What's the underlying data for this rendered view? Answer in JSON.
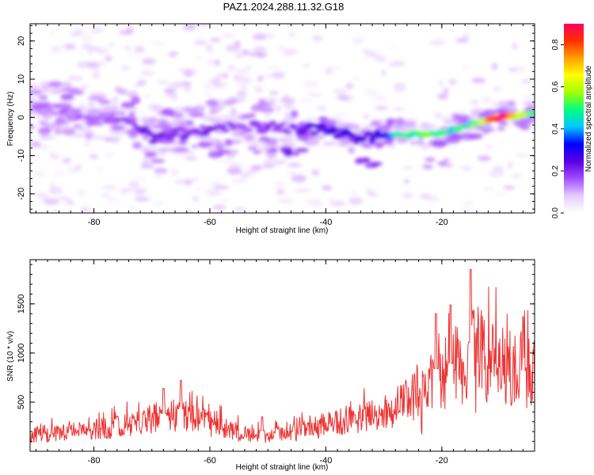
{
  "page": {
    "title": "PAZ1.2024.288.11.32.G18"
  },
  "chart_data": [
    {
      "type": "heatmap",
      "title": "PAZ1.2024.288.11.32.G18",
      "xlabel": "Height of straight line (km)",
      "ylabel": "Frequency (Hz)",
      "xlim": [
        -91,
        -4
      ],
      "ylim": [
        -25,
        24.5
      ],
      "x_ticks": [
        -80,
        -60,
        -40,
        -20
      ],
      "y_ticks": [
        -20,
        -10,
        0,
        10,
        20
      ],
      "colorbar": {
        "label": "Normalized spectral amplitude",
        "range": [
          0,
          0.9
        ],
        "ticks": [
          0.0,
          0.2,
          0.4,
          0.6,
          0.8
        ],
        "colors": [
          "#ffffff",
          "#e6ccff",
          "#a44cff",
          "#5a00e0",
          "#0000ff",
          "#00c8ff",
          "#00ff80",
          "#a0ff00",
          "#ffff00",
          "#ffa000",
          "#ff3000",
          "#ff0060"
        ]
      },
      "ridge": [
        {
          "x": -91,
          "y": 1.5,
          "amp": 0.12
        },
        {
          "x": -85,
          "y": 2,
          "amp": 0.15
        },
        {
          "x": -80,
          "y": -1,
          "amp": 0.15
        },
        {
          "x": -75,
          "y": 0.5,
          "amp": 0.18
        },
        {
          "x": -70,
          "y": -5.5,
          "amp": 0.22
        },
        {
          "x": -65,
          "y": -4,
          "amp": 0.2
        },
        {
          "x": -60,
          "y": -3,
          "amp": 0.22
        },
        {
          "x": -55,
          "y": -2,
          "amp": 0.18
        },
        {
          "x": -50,
          "y": -2.5,
          "amp": 0.2
        },
        {
          "x": -45,
          "y": -3,
          "amp": 0.22
        },
        {
          "x": -40,
          "y": -3,
          "amp": 0.26
        },
        {
          "x": -35,
          "y": -5.5,
          "amp": 0.26
        },
        {
          "x": -30,
          "y": -4.5,
          "amp": 0.32
        },
        {
          "x": -25,
          "y": -4.5,
          "amp": 0.55
        },
        {
          "x": -20,
          "y": -4,
          "amp": 0.45
        },
        {
          "x": -15,
          "y": -2,
          "amp": 0.5
        },
        {
          "x": -10,
          "y": 0,
          "amp": 0.88
        },
        {
          "x": -4,
          "y": 1,
          "amp": 0.5
        }
      ],
      "secondary_features": [
        {
          "x": -46,
          "y": -9,
          "amp": 0.25
        },
        {
          "x": -33,
          "y": -12,
          "amp": 0.2
        },
        {
          "x": -21,
          "y": -12,
          "amp": 0.15
        },
        {
          "x": -52,
          "y": 17,
          "amp": 0.12
        },
        {
          "x": -88,
          "y": 7,
          "amp": 0.1
        }
      ]
    },
    {
      "type": "line",
      "xlabel": "Height of straight line (km)",
      "ylabel": "SNR (10 * v/v)",
      "xlim": [
        -91,
        -4
      ],
      "ylim": [
        0,
        1950
      ],
      "x_ticks": [
        -80,
        -60,
        -40,
        -20
      ],
      "y_ticks": [
        500,
        1000,
        1500
      ],
      "color": "#ee3333",
      "envelope": [
        {
          "x": -91,
          "y": 180
        },
        {
          "x": -85,
          "y": 220
        },
        {
          "x": -80,
          "y": 260
        },
        {
          "x": -75,
          "y": 300
        },
        {
          "x": -70,
          "y": 400
        },
        {
          "x": -65,
          "y": 430
        },
        {
          "x": -60,
          "y": 330
        },
        {
          "x": -55,
          "y": 220
        },
        {
          "x": -50,
          "y": 180
        },
        {
          "x": -45,
          "y": 240
        },
        {
          "x": -40,
          "y": 320
        },
        {
          "x": -35,
          "y": 380
        },
        {
          "x": -30,
          "y": 450
        },
        {
          "x": -26,
          "y": 600
        },
        {
          "x": -22,
          "y": 850
        },
        {
          "x": -18,
          "y": 1000
        },
        {
          "x": -15,
          "y": 1200
        },
        {
          "x": -12,
          "y": 1050
        },
        {
          "x": -8,
          "y": 1000
        },
        {
          "x": -4,
          "y": 950
        }
      ],
      "peaks": [
        {
          "x": -15,
          "y": 1850
        },
        {
          "x": -18.5,
          "y": 1490
        },
        {
          "x": -21,
          "y": 1400
        },
        {
          "x": -65,
          "y": 720
        },
        {
          "x": -68,
          "y": 640
        },
        {
          "x": -51,
          "y": 350
        },
        {
          "x": -6,
          "y": 1370
        }
      ]
    }
  ]
}
